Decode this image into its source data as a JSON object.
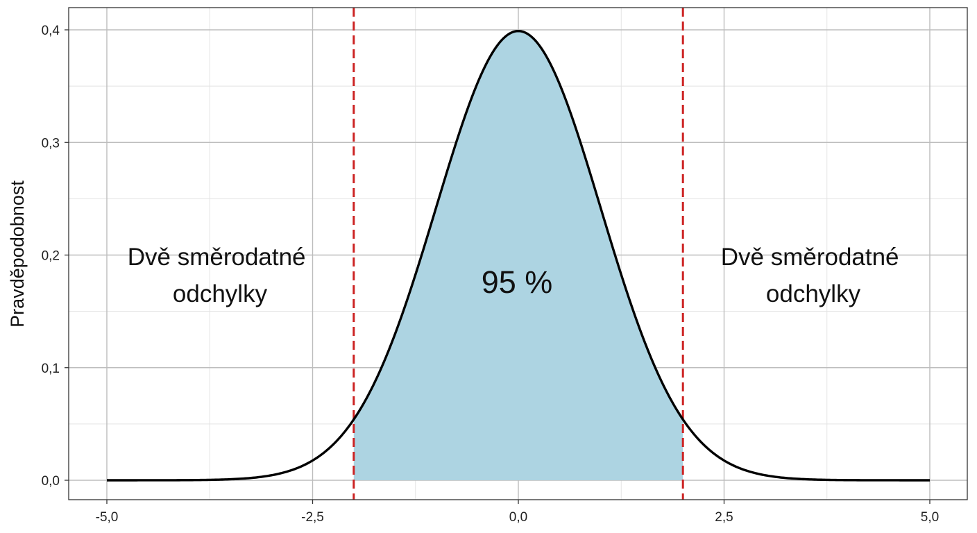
{
  "chart_data": {
    "type": "area",
    "title": "",
    "xlabel": "",
    "ylabel": "Pravděpodobnost",
    "xlim": [
      -5.0,
      5.0
    ],
    "ylim": [
      0.0,
      0.4
    ],
    "x_ticks": [
      -5.0,
      -2.5,
      0.0,
      2.5,
      5.0
    ],
    "x_tick_labels": [
      "-5,0",
      "-2,5",
      "0,0",
      "2,5",
      "5,0"
    ],
    "y_ticks": [
      0.0,
      0.1,
      0.2,
      0.3,
      0.4
    ],
    "y_tick_labels": [
      "0,0",
      "0,1",
      "0,2",
      "0,3",
      "0,4"
    ],
    "grid": true,
    "series": [
      {
        "distribution": "normal",
        "mean": 0,
        "sd": 1,
        "x": [
          -5.0,
          -4.5,
          -4.0,
          -3.5,
          -3.0,
          -2.5,
          -2.0,
          -1.5,
          -1.0,
          -0.5,
          0.0,
          0.5,
          1.0,
          1.5,
          2.0,
          2.5,
          3.0,
          3.5,
          4.0,
          4.5,
          5.0
        ],
        "y": [
          0.0,
          0.0,
          0.0001,
          0.0009,
          0.0044,
          0.0175,
          0.054,
          0.1295,
          0.242,
          0.3521,
          0.3989,
          0.3521,
          0.242,
          0.1295,
          0.054,
          0.0175,
          0.0044,
          0.0009,
          0.0001,
          0.0,
          0.0
        ],
        "color": "#000000"
      }
    ],
    "shaded_region": {
      "from": -2.0,
      "to": 2.0,
      "color": "#add4e2",
      "label": "95 %"
    },
    "reference_lines": [
      {
        "x": -2.0,
        "style": "dashed",
        "color": "#cc2222"
      },
      {
        "x": 2.0,
        "style": "dashed",
        "color": "#cc2222"
      }
    ],
    "annotations": [
      {
        "lines": [
          "Dvě směrodatné",
          "odchylky"
        ]
      },
      {
        "lines": [
          "Dvě směrodatné",
          "odchylky"
        ]
      }
    ]
  }
}
